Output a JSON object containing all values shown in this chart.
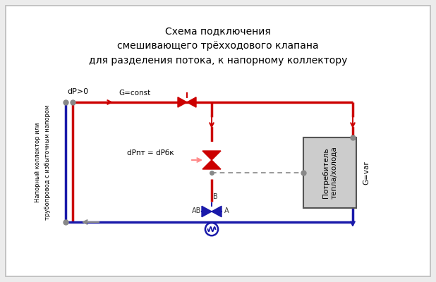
{
  "title": "Схема подключения\nсмешивающего трёхходового клапана\nдля разделения потока, к напорному коллектору",
  "bg_color": "#ececec",
  "panel_color": "#ffffff",
  "red": "#cc0000",
  "blue": "#1a1aaa",
  "dark_blue": "#1a1aaa",
  "gray": "#888888",
  "light_red": "#ff8888",
  "label_dP": "dP>0",
  "label_Gconst": "G=const",
  "label_dPpt": "dРпт = dРбк",
  "label_consumer": "Потребитель\nтепла/холода",
  "label_Gvar": "G=var",
  "label_left_vert1": "Напорный коллектор или",
  "label_left_vert2": "трубопровод с избыточным напором",
  "label_AB": "АВ",
  "label_B": "В",
  "label_A": "А"
}
